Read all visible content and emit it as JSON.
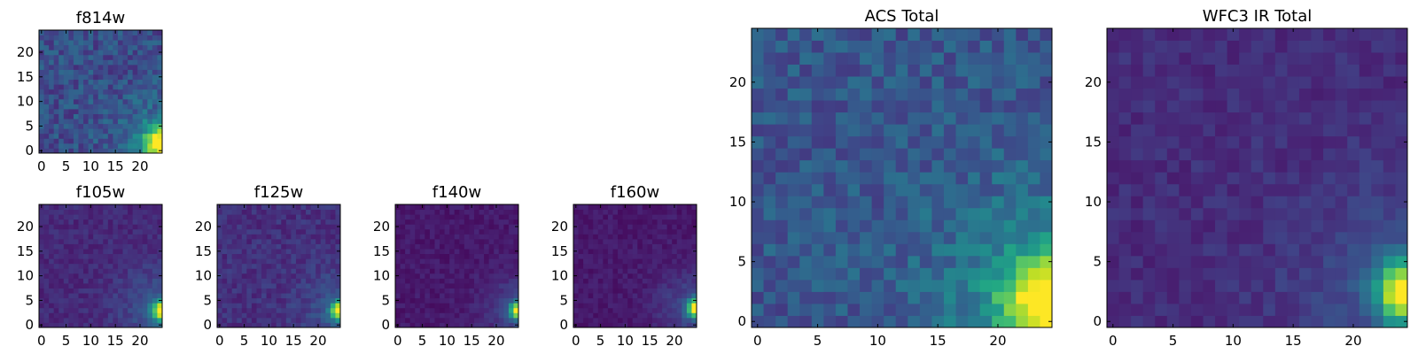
{
  "colors": {
    "colormap": "viridis",
    "background": "#ffffff",
    "axis": "#000000"
  },
  "chart_data": [
    {
      "type": "heatmap",
      "id": "f814w",
      "title": "f814w",
      "grid_size": 25,
      "xlim": [
        -0.5,
        24.5
      ],
      "ylim": [
        -0.5,
        24.5
      ],
      "x_ticks": [
        0,
        5,
        10,
        15,
        20
      ],
      "y_ticks": [
        0,
        5,
        10,
        15,
        20
      ],
      "x_tick_labels": [
        "0",
        "5",
        "10",
        "15",
        "20"
      ],
      "y_tick_labels": [
        "0",
        "5",
        "10",
        "15",
        "20"
      ],
      "pattern": {
        "base": 0.24,
        "noise": 0.11,
        "source_x": 24.5,
        "source_y": 1.5,
        "source_amp": 0.78,
        "source_sigma": 2.6,
        "halo_amp": 0.14,
        "halo_sigma": 6.5,
        "seed": 11
      }
    },
    {
      "type": "heatmap",
      "id": "f105w",
      "title": "f105w",
      "grid_size": 25,
      "xlim": [
        -0.5,
        24.5
      ],
      "ylim": [
        -0.5,
        24.5
      ],
      "x_ticks": [
        0,
        5,
        10,
        15,
        20
      ],
      "y_ticks": [
        0,
        5,
        10,
        15,
        20
      ],
      "x_tick_labels": [
        "0",
        "5",
        "10",
        "15",
        "20"
      ],
      "y_tick_labels": [
        "0",
        "5",
        "10",
        "15",
        "20"
      ],
      "pattern": {
        "base": 0.12,
        "noise": 0.05,
        "source_x": 24.5,
        "source_y": 3.0,
        "source_amp": 0.88,
        "source_sigma": 1.4,
        "halo_amp": 0.16,
        "halo_sigma": 6.0,
        "seed": 23
      }
    },
    {
      "type": "heatmap",
      "id": "f125w",
      "title": "f125w",
      "grid_size": 25,
      "xlim": [
        -0.5,
        24.5
      ],
      "ylim": [
        -0.5,
        24.5
      ],
      "x_ticks": [
        0,
        5,
        10,
        15,
        20
      ],
      "y_ticks": [
        0,
        5,
        10,
        15,
        20
      ],
      "x_tick_labels": [
        "0",
        "5",
        "10",
        "15",
        "20"
      ],
      "y_tick_labels": [
        "0",
        "5",
        "10",
        "15",
        "20"
      ],
      "pattern": {
        "base": 0.14,
        "noise": 0.06,
        "source_x": 24.5,
        "source_y": 3.0,
        "source_amp": 0.86,
        "source_sigma": 1.3,
        "halo_amp": 0.13,
        "halo_sigma": 5.5,
        "seed": 37
      }
    },
    {
      "type": "heatmap",
      "id": "f140w",
      "title": "f140w",
      "grid_size": 25,
      "xlim": [
        -0.5,
        24.5
      ],
      "ylim": [
        -0.5,
        24.5
      ],
      "x_ticks": [
        0,
        5,
        10,
        15,
        20
      ],
      "y_ticks": [
        0,
        5,
        10,
        15,
        20
      ],
      "x_tick_labels": [
        "0",
        "5",
        "10",
        "15",
        "20"
      ],
      "y_tick_labels": [
        "0",
        "5",
        "10",
        "15",
        "20"
      ],
      "pattern": {
        "base": 0.07,
        "noise": 0.04,
        "source_x": 24.5,
        "source_y": 3.0,
        "source_amp": 0.92,
        "source_sigma": 1.2,
        "halo_amp": 0.14,
        "halo_sigma": 5.0,
        "seed": 41
      }
    },
    {
      "type": "heatmap",
      "id": "f160w",
      "title": "f160w",
      "grid_size": 25,
      "xlim": [
        -0.5,
        24.5
      ],
      "ylim": [
        -0.5,
        24.5
      ],
      "x_ticks": [
        0,
        5,
        10,
        15,
        20
      ],
      "y_ticks": [
        0,
        5,
        10,
        15,
        20
      ],
      "x_tick_labels": [
        "0",
        "5",
        "10",
        "15",
        "20"
      ],
      "y_tick_labels": [
        "0",
        "5",
        "10",
        "15",
        "20"
      ],
      "pattern": {
        "base": 0.07,
        "noise": 0.04,
        "source_x": 24.5,
        "source_y": 3.5,
        "source_amp": 0.95,
        "source_sigma": 1.3,
        "halo_amp": 0.16,
        "halo_sigma": 5.5,
        "seed": 53
      }
    },
    {
      "type": "heatmap",
      "id": "acs-total",
      "title": "ACS Total",
      "grid_size": 25,
      "xlim": [
        -0.5,
        24.5
      ],
      "ylim": [
        -0.5,
        24.5
      ],
      "x_ticks": [
        0,
        5,
        10,
        15,
        20
      ],
      "y_ticks": [
        0,
        5,
        10,
        15,
        20
      ],
      "x_tick_labels": [
        "0",
        "5",
        "10",
        "15",
        "20"
      ],
      "y_tick_labels": [
        "0",
        "5",
        "10",
        "15",
        "20"
      ],
      "pattern": {
        "base": 0.27,
        "noise": 0.1,
        "source_x": 24.5,
        "source_y": 1.5,
        "source_amp": 0.74,
        "source_sigma": 2.8,
        "halo_amp": 0.2,
        "halo_sigma": 7.0,
        "seed": 67
      }
    },
    {
      "type": "heatmap",
      "id": "wfc3-ir-total",
      "title": "WFC3 IR Total",
      "grid_size": 25,
      "xlim": [
        -0.5,
        24.5
      ],
      "ylim": [
        -0.5,
        24.5
      ],
      "x_ticks": [
        0,
        5,
        10,
        15,
        20
      ],
      "y_ticks": [
        0,
        5,
        10,
        15,
        20
      ],
      "x_tick_labels": [
        "0",
        "5",
        "10",
        "15",
        "20"
      ],
      "y_tick_labels": [
        "0",
        "5",
        "10",
        "15",
        "20"
      ],
      "pattern": {
        "base": 0.13,
        "noise": 0.05,
        "source_x": 24.5,
        "source_y": 2.5,
        "source_amp": 0.9,
        "source_sigma": 1.7,
        "halo_amp": 0.14,
        "halo_sigma": 6.0,
        "seed": 79
      }
    }
  ]
}
